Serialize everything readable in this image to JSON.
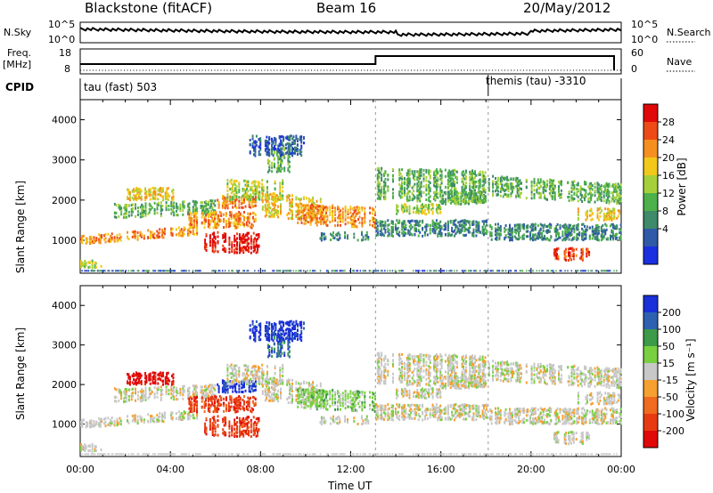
{
  "header": {
    "station": "Blackstone (fitACF)",
    "beam": "Beam 16",
    "date": "20/May/2012"
  },
  "panels": {
    "noise": {
      "left_label": "N.Sky",
      "right_label": "N.Search",
      "left_ticks": [
        "10^5",
        "10^0"
      ],
      "right_ticks": [
        "10^5",
        "10^0"
      ]
    },
    "freq": {
      "left_label_1": "Freq.",
      "left_label_2": "[MHz]",
      "right_label": "Nave",
      "left_ticks": [
        "18",
        "8"
      ],
      "right_ticks": [
        "60",
        "0"
      ]
    },
    "cpid": {
      "label": "CPID",
      "program_1": "tau (fast) 503",
      "program_2": "themis (tau) -3310"
    }
  },
  "chart_data": [
    {
      "type": "heatmap",
      "title": "",
      "ylabel": "Slant Range [km]",
      "xlabel": "",
      "ylim": [
        180,
        4500
      ],
      "xlim": [
        0,
        24
      ],
      "y_ticks": [
        "1000",
        "2000",
        "3000",
        "4000"
      ],
      "colorbar": {
        "label": "Power [dB]",
        "ticks": [
          "4",
          "8",
          "12",
          "16",
          "20",
          "24",
          "28"
        ],
        "colors": [
          "#1a30e0",
          "#2f5aa8",
          "#3e8a6a",
          "#4db04a",
          "#a6d03a",
          "#f2c81a",
          "#f59020",
          "#ee4a18",
          "#e00808"
        ]
      }
    },
    {
      "type": "heatmap",
      "title": "",
      "ylabel": "Slant Range [km]",
      "xlabel": "Time UT",
      "ylim": [
        180,
        4500
      ],
      "xlim": [
        0,
        24
      ],
      "y_ticks": [
        "1000",
        "2000",
        "3000",
        "4000"
      ],
      "x_ticks": [
        "00:00",
        "04:00",
        "08:00",
        "12:00",
        "16:00",
        "20:00",
        "00:00"
      ],
      "colorbar": {
        "label": "Velocity [m s⁻¹]",
        "ticks": [
          "200",
          "100",
          "50",
          "15",
          "-15",
          "-50",
          "-100",
          "-200"
        ],
        "colors": [
          "#1a30d8",
          "#2e62b0",
          "#3c9a48",
          "#78d040",
          "#c8c8c8",
          "#f5a030",
          "#f06a20",
          "#e83a12",
          "#e00808"
        ]
      }
    }
  ]
}
